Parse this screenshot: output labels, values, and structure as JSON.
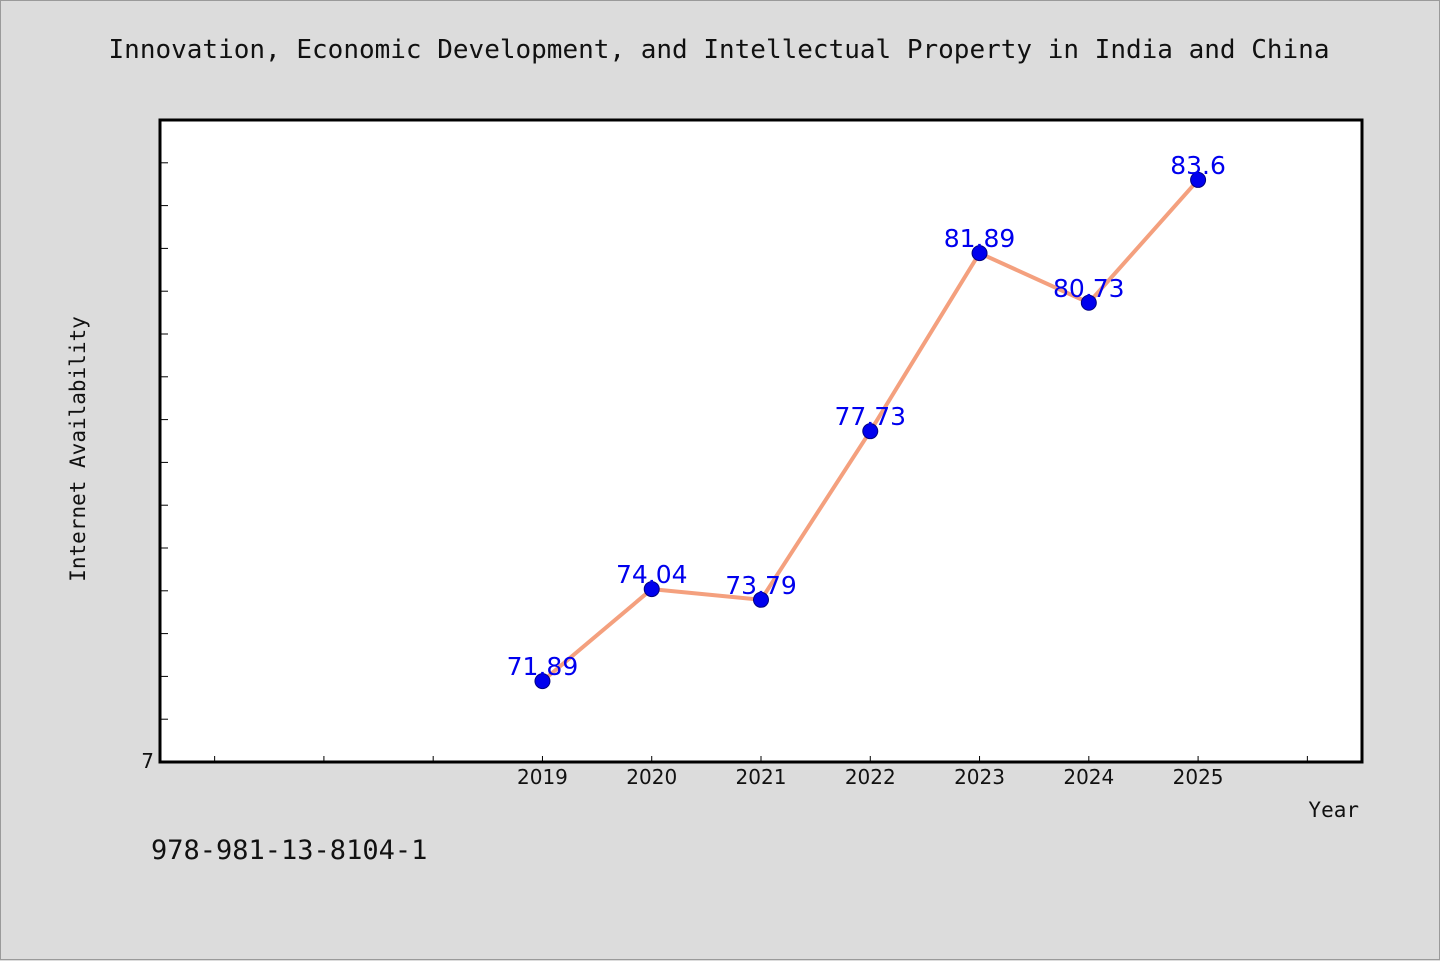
{
  "chart_data": {
    "type": "line",
    "title": "Innovation, Economic Development, and Intellectual Property in India and China",
    "xlabel": "Year",
    "ylabel": "Internet Availability",
    "x": [
      "2019",
      "2020",
      "2021",
      "2022",
      "2023",
      "2024",
      "2025"
    ],
    "series": [
      {
        "values": [
          71.89,
          74.04,
          73.79,
          77.73,
          81.89,
          80.73,
          83.6
        ]
      }
    ],
    "data_labels": [
      "71.89",
      "74.04",
      "73.79",
      "77.73",
      "81.89",
      "80.73",
      "83.6"
    ],
    "y_tick_labels": [
      "7"
    ],
    "ylim": [
      70,
      85
    ],
    "xlim": [
      2015.5,
      2026.5
    ],
    "grid": false,
    "legend": false,
    "colors": {
      "line": "#f4a07e",
      "marker_fill": "#0000ee",
      "marker_stroke": "#000080",
      "label": "#0000ee",
      "plot_background": "#ffffff",
      "page_background": "#dcdcdc"
    }
  },
  "footer": {
    "isbn": "978-981-13-8104-1"
  }
}
